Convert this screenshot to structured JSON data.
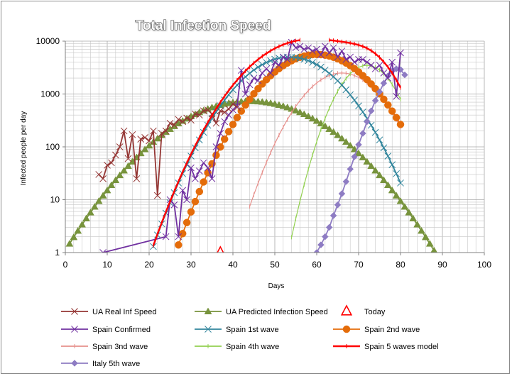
{
  "chart_data": {
    "type": "line",
    "title": "Total Infection Speed",
    "xlabel": "Days",
    "ylabel": "Infected people per day",
    "xlim": [
      0,
      100
    ],
    "ylim": [
      1,
      10000
    ],
    "yscale": "log",
    "x_ticks": [
      0,
      10,
      20,
      30,
      40,
      50,
      60,
      70,
      80,
      90,
      100
    ],
    "y_ticks": [
      1,
      10,
      100,
      1000,
      10000
    ],
    "y_tick_labels": [
      "1",
      "10",
      "100",
      "1000",
      "10000"
    ],
    "grid": true,
    "legend_position": "bottom",
    "series": [
      {
        "name": "UA Real Inf Speed",
        "color": "#943634",
        "marker": "x",
        "kind": "points",
        "points": [
          [
            8,
            30
          ],
          [
            9,
            25
          ],
          [
            10,
            45
          ],
          [
            11,
            50
          ],
          [
            12,
            70
          ],
          [
            13,
            100
          ],
          [
            14,
            200
          ],
          [
            15,
            60
          ],
          [
            16,
            170
          ],
          [
            17,
            25
          ],
          [
            18,
            140
          ],
          [
            19,
            150
          ],
          [
            20,
            130
          ],
          [
            21,
            200
          ],
          [
            22,
            12
          ],
          [
            23,
            180
          ],
          [
            24,
            200
          ],
          [
            25,
            280
          ],
          [
            26,
            260
          ],
          [
            27,
            330
          ],
          [
            28,
            300
          ],
          [
            29,
            350
          ],
          [
            30,
            320
          ],
          [
            31,
            420
          ],
          [
            32,
            400
          ],
          [
            33,
            480
          ],
          [
            34,
            500
          ],
          [
            35,
            420
          ],
          [
            36,
            280
          ],
          [
            37,
            480
          ],
          [
            38,
            450
          ],
          [
            39,
            520
          ],
          [
            40,
            650
          ],
          [
            41,
            560
          ]
        ]
      },
      {
        "name": "UA Predicted Infection Speed",
        "color": "#77933c",
        "marker": "triangle",
        "kind": "model",
        "model": {
          "type": "gauss",
          "peak": 730,
          "center": 44,
          "sigma": 12.2,
          "x_start": 1,
          "x_end": 98
        }
      },
      {
        "name": "Today",
        "color": "#ff0000",
        "marker": "open-triangle",
        "kind": "points",
        "points": [
          [
            37,
            1
          ]
        ]
      },
      {
        "name": "Spain Confirmed",
        "color": "#7030a0",
        "marker": "x",
        "kind": "points",
        "points": [
          [
            9,
            1
          ],
          [
            24,
            2
          ],
          [
            25,
            10
          ],
          [
            26,
            8
          ],
          [
            27,
            2
          ],
          [
            28,
            15
          ],
          [
            29,
            10
          ],
          [
            30,
            40
          ],
          [
            31,
            25
          ],
          [
            32,
            35
          ],
          [
            33,
            50
          ],
          [
            34,
            40
          ],
          [
            35,
            25
          ],
          [
            36,
            100
          ],
          [
            37,
            180
          ],
          [
            38,
            300
          ],
          [
            39,
            400
          ],
          [
            40,
            500
          ],
          [
            41,
            600
          ],
          [
            42,
            2800
          ],
          [
            43,
            1000
          ],
          [
            44,
            1500
          ],
          [
            45,
            2000
          ],
          [
            46,
            1800
          ],
          [
            47,
            2500
          ],
          [
            48,
            3000
          ],
          [
            49,
            2500
          ],
          [
            50,
            4000
          ],
          [
            51,
            3500
          ],
          [
            52,
            5000
          ],
          [
            53,
            4500
          ],
          [
            54,
            9500
          ],
          [
            55,
            7500
          ],
          [
            56,
            8000
          ],
          [
            57,
            7000
          ],
          [
            58,
            7500
          ],
          [
            59,
            6500
          ],
          [
            60,
            7000
          ],
          [
            61,
            5500
          ],
          [
            62,
            8000
          ],
          [
            63,
            6000
          ],
          [
            64,
            7500
          ],
          [
            65,
            5000
          ],
          [
            66,
            6500
          ],
          [
            67,
            4500
          ],
          [
            68,
            5000
          ],
          [
            69,
            4000
          ],
          [
            70,
            4500
          ],
          [
            71,
            4500
          ],
          [
            72,
            4000
          ],
          [
            73,
            3500
          ],
          [
            74,
            3000
          ],
          [
            75,
            3500
          ],
          [
            76,
            2500
          ],
          [
            77,
            2000
          ],
          [
            78,
            4000
          ],
          [
            79,
            900
          ],
          [
            80,
            6000
          ]
        ]
      },
      {
        "name": "Spain 1st wave",
        "color": "#31859c",
        "marker": "x",
        "kind": "model",
        "model": {
          "type": "gauss",
          "peak": 5000,
          "center": 53.5,
          "sigma": 8.0,
          "x_start": 20,
          "x_end": 80
        }
      },
      {
        "name": "Spain 2nd wave",
        "color": "#e46c0a",
        "marker": "circle",
        "kind": "model",
        "model": {
          "type": "gauss",
          "peak": 5600,
          "center": 60,
          "sigma": 8.1,
          "x_start": 21,
          "x_end": 80
        }
      },
      {
        "name": "Spain 3nd wave",
        "color": "#e6908c",
        "marker": "dash",
        "kind": "model",
        "model": {
          "type": "gauss",
          "peak": 2500,
          "center": 66,
          "sigma": 6.45,
          "x_start": 44,
          "x_end": 80
        }
      },
      {
        "name": "Spain 4th wave",
        "color": "#92d050",
        "marker": "dash",
        "kind": "model",
        "model": {
          "type": "gauss",
          "peak": 3500,
          "center": 72,
          "sigma": 4.65,
          "x_start": 54,
          "x_end": 80
        }
      },
      {
        "name": "Spain 5 waves model",
        "color": "#ff0000",
        "marker": "dash",
        "kind": "model",
        "model": {
          "type": "sum",
          "of": [
            "Spain 1st wave",
            "Spain 2nd wave",
            "Spain 3nd wave",
            "Spain 4th wave"
          ],
          "x_start": 18,
          "x_end": 80
        }
      },
      {
        "name": "Italy 5th wave",
        "color": "#8e7cc3",
        "marker": "diamond",
        "kind": "points",
        "points": [
          [
            60,
            1
          ],
          [
            61,
            1.4
          ],
          [
            62,
            2
          ],
          [
            63,
            3
          ],
          [
            64,
            5
          ],
          [
            65,
            8
          ],
          [
            66,
            13
          ],
          [
            67,
            22
          ],
          [
            68,
            38
          ],
          [
            69,
            65
          ],
          [
            70,
            110
          ],
          [
            71,
            180
          ],
          [
            72,
            300
          ],
          [
            73,
            480
          ],
          [
            74,
            750
          ],
          [
            75,
            1100
          ],
          [
            76,
            1600
          ],
          [
            77,
            2200
          ],
          [
            78,
            2700
          ],
          [
            79,
            3000
          ],
          [
            80,
            2900
          ],
          [
            81,
            2300
          ]
        ]
      }
    ]
  }
}
